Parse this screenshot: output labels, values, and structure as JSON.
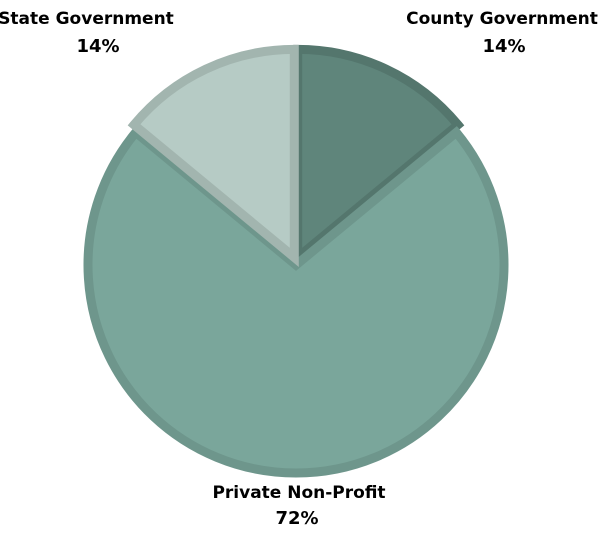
{
  "chart_data": {
    "type": "pie",
    "title": "",
    "slices": [
      {
        "label": "County Government",
        "value": 14,
        "value_label": "14%",
        "color": "#5f857b",
        "edge": "#54766d"
      },
      {
        "label": "Private Non-Profit",
        "value": 72,
        "value_label": "72%",
        "color": "#7aa69b",
        "edge": "#6e968c"
      },
      {
        "label": "State Government",
        "value": 14,
        "value_label": "14%",
        "color": "#b6cbc5",
        "edge": "#a2b5af"
      }
    ],
    "start_angle_deg": 0,
    "direction": "clockwise",
    "legend": "none",
    "data_labels": "outside"
  }
}
